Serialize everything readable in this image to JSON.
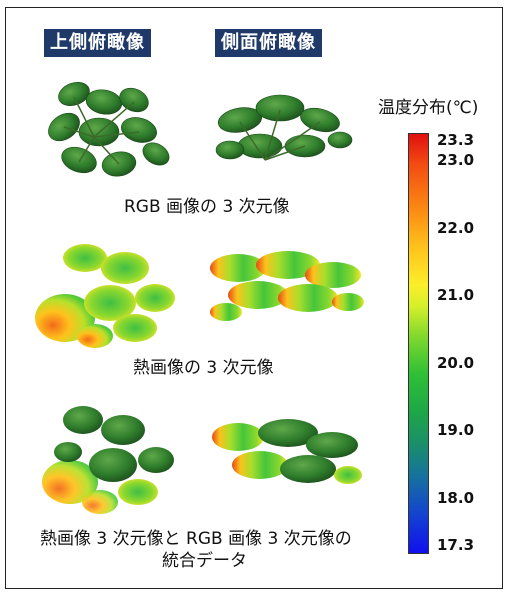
{
  "views": {
    "top_label": "上側俯瞰像",
    "side_label": "側面俯瞰像"
  },
  "captions": {
    "rgb": "RGB 画像の 3 次元像",
    "thermal": "熱画像の 3 次元像",
    "combined_line1": "熱画像 3 次元像と RGB 画像 3 次元像の",
    "combined_line2": "統合データ"
  },
  "legend": {
    "title": "温度分布(℃)",
    "unit": "℃",
    "ticks": [
      "23.3",
      "23.0",
      "22.0",
      "21.0",
      "20.0",
      "19.0",
      "18.0",
      "17.3"
    ],
    "tick_values": [
      23.3,
      23.0,
      22.0,
      21.0,
      20.0,
      19.0,
      18.0,
      17.3
    ],
    "range": [
      17.3,
      23.3
    ],
    "colors": {
      "max": "#e01010",
      "mid": "#fcee2a",
      "low": "#31c035",
      "min": "#1010ee"
    }
  },
  "panels": [
    {
      "row": "rgb",
      "view": "top",
      "kind": "rgb"
    },
    {
      "row": "rgb",
      "view": "side",
      "kind": "rgb"
    },
    {
      "row": "thermal",
      "view": "top",
      "kind": "thermal"
    },
    {
      "row": "thermal",
      "view": "side",
      "kind": "thermal"
    },
    {
      "row": "combined",
      "view": "top",
      "kind": "combined"
    },
    {
      "row": "combined",
      "view": "side",
      "kind": "combined"
    }
  ]
}
